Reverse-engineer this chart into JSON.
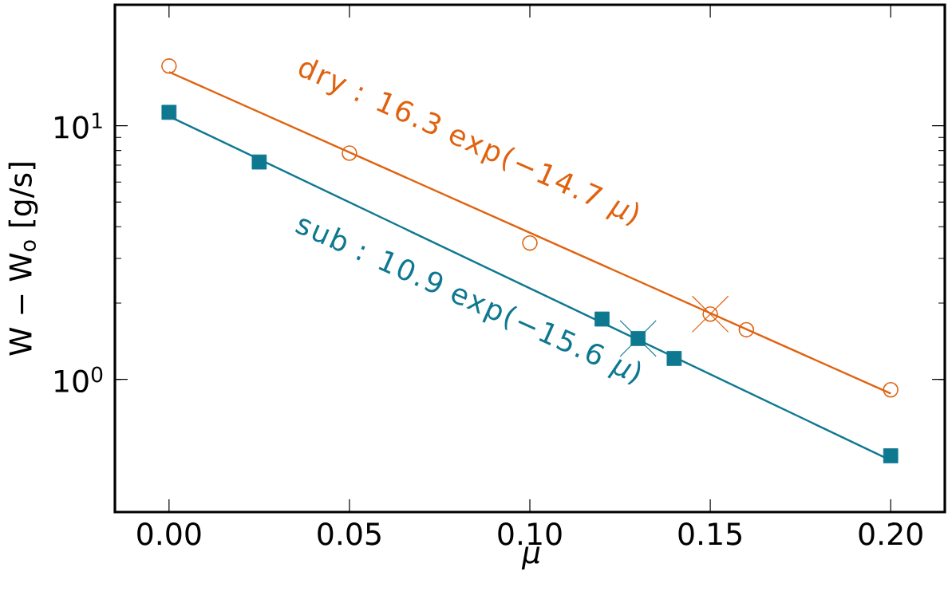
{
  "chart_data": {
    "type": "scatter",
    "log": "y",
    "xlabel": "μ",
    "ylabel": "W − W$_{o}$  [g/s]",
    "xlim": [
      -0.015,
      0.215
    ],
    "ylim": [
      0.3,
      30
    ],
    "xticks": [
      {
        "value": 0,
        "label": "0.00"
      },
      {
        "value": 0.05,
        "label": "0.05"
      },
      {
        "value": 0.1,
        "label": "0.10"
      },
      {
        "value": 0.15,
        "label": "0.15"
      },
      {
        "value": 0.2,
        "label": "0.20"
      }
    ],
    "yticks": [
      {
        "value": 1,
        "label": "10$^{0}$"
      },
      {
        "value": 10,
        "label": "10$^{1}$"
      }
    ],
    "annotations": [
      "dry :  16.3 exp(−14.7 *μ*)",
      "sub :  10.9 exp(−15.6 *μ*)"
    ],
    "series": [
      {
        "type": "line",
        "color": "#e0620f",
        "marker": "none",
        "x": [
          0,
          0.2
        ],
        "values": [
          16.3,
          0.88
        ]
      },
      {
        "type": "line",
        "color": "#0f7891",
        "marker": "none",
        "x": [
          0,
          0.2
        ],
        "values": [
          10.9,
          0.48
        ]
      },
      {
        "type": "scatter",
        "color": "#e0620f",
        "marker": "circle",
        "x": [
          0,
          0.05,
          0.1,
          0.15,
          0.16,
          0.2
        ],
        "values": [
          17.2,
          7.8,
          3.45,
          1.81,
          1.57,
          0.91
        ]
      },
      {
        "type": "scatter",
        "color": "#0f7891",
        "marker": "square",
        "x": [
          0,
          0.025,
          0.12,
          0.13,
          0.14,
          0.2
        ],
        "values": [
          11.3,
          7.2,
          1.73,
          1.45,
          1.21,
          0.5
        ]
      },
      {
        "type": "scatter",
        "color": "#e0620f",
        "marker": "cross",
        "x": [
          0.15
        ],
        "values": [
          1.81
        ]
      },
      {
        "type": "scatter",
        "color": "#0f7891",
        "marker": "cross",
        "x": [
          0.13
        ],
        "values": [
          1.45
        ]
      }
    ]
  }
}
